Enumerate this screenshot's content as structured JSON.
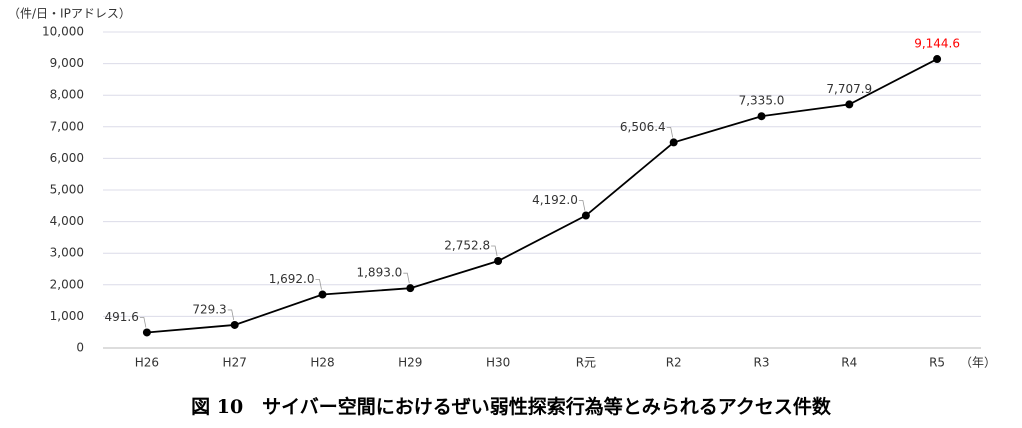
{
  "chart_data": {
    "type": "line",
    "title": "図 10　サイバー空間におけるぜい弱性探索行為等とみられるアクセス件数",
    "y_axis_label": "（件/日・IPアドレス）",
    "x_axis_label": "（年）",
    "categories": [
      "H26",
      "H27",
      "H28",
      "H29",
      "H30",
      "R元",
      "R2",
      "R3",
      "R4",
      "R5"
    ],
    "series": [
      {
        "name": "アクセス件数",
        "color": "#000000",
        "values": [
          491.6,
          729.3,
          1692.0,
          1893.0,
          2752.8,
          4192.0,
          6506.4,
          7335.0,
          7707.9,
          9144.6
        ],
        "value_labels": [
          "491.6",
          "729.3",
          "1,692.0",
          "1,893.0",
          "2,752.8",
          "4,192.0",
          "6,506.4",
          "7,335.0",
          "7,707.9",
          "9,144.6"
        ],
        "value_label_colors": [
          "#333333",
          "#333333",
          "#333333",
          "#333333",
          "#333333",
          "#333333",
          "#333333",
          "#333333",
          "#333333",
          "#ff0000"
        ]
      }
    ],
    "ylim": [
      0,
      10000
    ],
    "yticks": [
      0,
      {
        "value": 1000,
        "label": "1,000"
      },
      {
        "value": 2000,
        "label": "2,000"
      },
      {
        "value": 3000,
        "label": "3,000"
      },
      {
        "value": 4000,
        "label": "4,000"
      },
      {
        "value": 5000,
        "label": "5,000"
      },
      {
        "value": 6000,
        "label": "6,000"
      },
      {
        "value": 7000,
        "label": "7,000"
      },
      {
        "value": 8000,
        "label": "8,000"
      },
      {
        "value": 9000,
        "label": "9,000"
      },
      {
        "value": 10000,
        "label": "10,000"
      }
    ],
    "grid": true
  }
}
